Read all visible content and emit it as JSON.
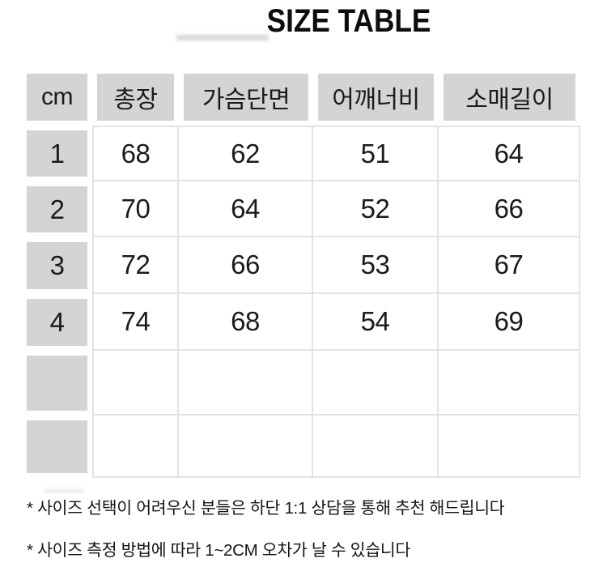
{
  "title": "SIZE TABLE",
  "table": {
    "headers": [
      "cm",
      "총장",
      "가슴단면",
      "어깨너비",
      "소매길이"
    ],
    "rows": [
      {
        "size": "1",
        "values": [
          "68",
          "62",
          "51",
          "64"
        ]
      },
      {
        "size": "2",
        "values": [
          "70",
          "64",
          "52",
          "66"
        ]
      },
      {
        "size": "3",
        "values": [
          "72",
          "66",
          "53",
          "67"
        ]
      },
      {
        "size": "4",
        "values": [
          "74",
          "68",
          "54",
          "69"
        ]
      },
      {
        "size": "",
        "values": [
          "",
          "",
          "",
          ""
        ]
      },
      {
        "size": "",
        "values": [
          "",
          "",
          "",
          ""
        ]
      }
    ]
  },
  "notes": [
    "* 사이즈 선택이 어려우신 분들은 하단 1:1 상담을 통해 추천 해드립니다",
    "* 사이즈 측정 방법에 따라 1~2CM 오차가 날 수 있습니다"
  ],
  "colors": {
    "header_bg": "#d5d3d4",
    "grid_line": "#e3e3e3",
    "text": "#1b1b1b",
    "title_text": "#0d0d0d"
  }
}
